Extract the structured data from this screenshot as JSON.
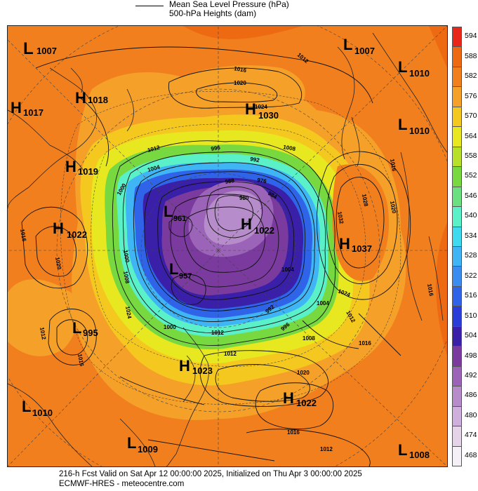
{
  "legend": {
    "line1": "Mean Sea Level Pressure (hPa)",
    "line2": "500-hPa Heights (dam)"
  },
  "colorbar": {
    "levels": [
      "468",
      "474",
      "480",
      "486",
      "492",
      "498",
      "504",
      "510",
      "516",
      "522",
      "528",
      "534",
      "540",
      "546",
      "552",
      "558",
      "564",
      "570",
      "576",
      "582",
      "588",
      "594"
    ],
    "colors": [
      "#f5f0f7",
      "#e5d3ea",
      "#cfb0dc",
      "#b78ccb",
      "#9c64b8",
      "#7a3a9e",
      "#3a1fa8",
      "#2a3dd8",
      "#2f63e8",
      "#3a8cf0",
      "#3fb5f5",
      "#3fd9f0",
      "#5af0c8",
      "#6ae080",
      "#78d840",
      "#b8e028",
      "#e8e820",
      "#f5c820",
      "#f5a028",
      "#f27f1e",
      "#ee6a12",
      "#e8261a"
    ]
  },
  "centers": [
    {
      "type": "L",
      "value": "1007"
    },
    {
      "type": "H",
      "value": "1018"
    },
    {
      "type": "H",
      "value": "1017"
    },
    {
      "type": "H",
      "value": "1019"
    },
    {
      "type": "H",
      "value": "1022"
    },
    {
      "type": "L",
      "value": "995"
    },
    {
      "type": "L",
      "value": "1010"
    },
    {
      "type": "L",
      "value": "1009"
    },
    {
      "type": "H",
      "value": "1023"
    },
    {
      "type": "H",
      "value": "1022"
    },
    {
      "type": "L",
      "value": "1008"
    },
    {
      "type": "H",
      "value": "1037"
    },
    {
      "type": "L",
      "value": "1010"
    },
    {
      "type": "L",
      "value": "1010"
    },
    {
      "type": "L",
      "value": "1007"
    },
    {
      "type": "H",
      "value": "1030"
    },
    {
      "type": "H",
      "value": "1022"
    },
    {
      "type": "L",
      "value": "961"
    },
    {
      "type": "L",
      "value": "957"
    }
  ],
  "isobar_labels": [
    "1016",
    "1020",
    "1024",
    "1012",
    "1008",
    "1004",
    "1000",
    "996",
    "992",
    "988",
    "984",
    "980",
    "976",
    "1028",
    "1032"
  ],
  "footer": {
    "line1": "216-h Fcst Valid on Sat Apr 12 00:00:00 2025, Initialized on Thu Apr  3 00:00:00 2025",
    "line2": "ECMWF-HRES  - meteocentre.com"
  }
}
